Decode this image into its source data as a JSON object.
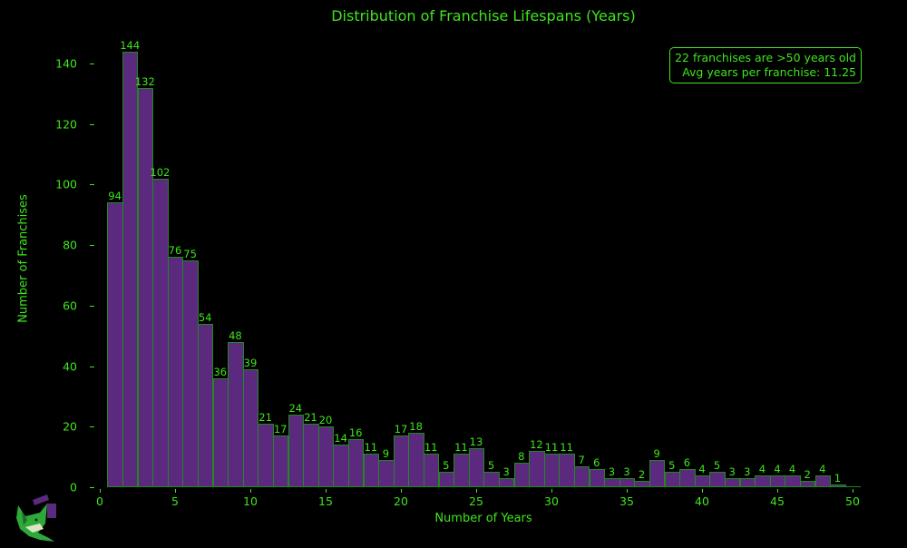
{
  "chart_data": {
    "type": "bar",
    "title": "Distribution of Franchise Lifespans (Years)",
    "xlabel": "Number of Years",
    "ylabel": "Number of Franchises",
    "xlim": [
      0,
      50
    ],
    "ylim": [
      0,
      150
    ],
    "x_ticks": [
      0,
      5,
      10,
      15,
      20,
      25,
      30,
      35,
      40,
      45,
      50
    ],
    "y_ticks": [
      0,
      20,
      40,
      60,
      80,
      100,
      120,
      140
    ],
    "grid": false,
    "categories": [
      1,
      2,
      3,
      4,
      5,
      6,
      7,
      8,
      9,
      10,
      11,
      12,
      13,
      14,
      15,
      16,
      17,
      18,
      19,
      20,
      21,
      22,
      23,
      24,
      25,
      26,
      27,
      28,
      29,
      30,
      31,
      32,
      33,
      34,
      35,
      36,
      37,
      38,
      39,
      40,
      41,
      42,
      43,
      44,
      45,
      46,
      47,
      48,
      49,
      50
    ],
    "values": [
      94,
      144,
      132,
      102,
      76,
      75,
      54,
      36,
      48,
      39,
      21,
      17,
      24,
      21,
      20,
      14,
      16,
      11,
      9,
      17,
      18,
      11,
      5,
      11,
      13,
      5,
      3,
      8,
      12,
      11,
      11,
      7,
      6,
      3,
      3,
      2,
      9,
      5,
      6,
      4,
      5,
      3,
      3,
      4,
      4,
      4,
      2,
      4,
      1,
      0
    ],
    "annotations": [
      "22 franchises are >50 years old",
      "Avg years per franchise: 11.25"
    ],
    "colors": {
      "bar_fill": "#5b2a7e",
      "bar_edge": "#1f8a1f",
      "text": "#3fe61c",
      "background": "#000000"
    }
  },
  "title": "Distribution of Franchise Lifespans (Years)",
  "xlabel": "Number of Years",
  "ylabel": "Number of Franchises",
  "info_box": {
    "line1": "22 franchises are >50 years old",
    "line2": "Avg years per franchise: 11.25"
  },
  "logo": {
    "icon": "fox-clapperboard-icon"
  }
}
